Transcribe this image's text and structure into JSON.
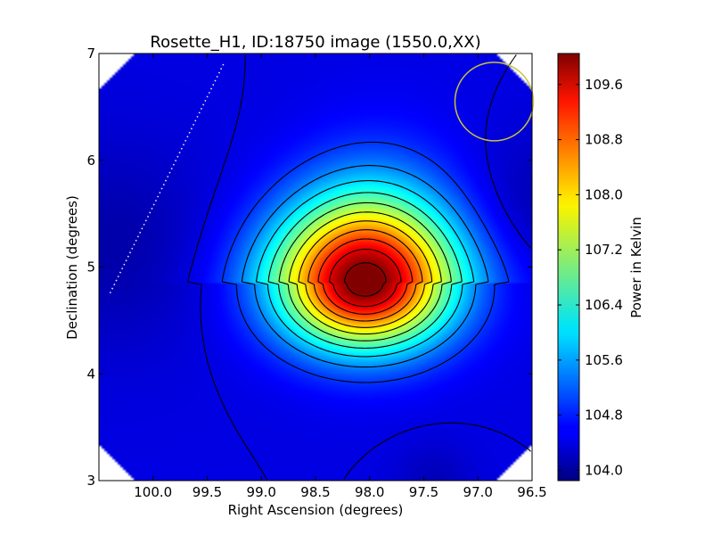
{
  "chart_data": {
    "type": "heatmap",
    "title": "Rosette_H1, ID:18750 image (1550.0,XX)",
    "xlabel": "Right Ascension (degrees)",
    "ylabel": "Declination (degrees)",
    "xlim": [
      100.5,
      96.5
    ],
    "ylim": [
      3,
      7
    ],
    "x_reversed": true,
    "x_ticks": [
      100.0,
      99.5,
      99.0,
      98.5,
      98.0,
      97.5,
      97.0,
      96.5
    ],
    "x_tick_labels": [
      "100.0",
      "99.5",
      "99.0",
      "98.5",
      "98.0",
      "97.5",
      "97.0",
      "96.5"
    ],
    "y_ticks": [
      3,
      4,
      5,
      6,
      7
    ],
    "y_tick_labels": [
      "3",
      "4",
      "5",
      "6",
      "7"
    ],
    "colormap": "jet",
    "colorbar": {
      "label": "Power in Kelvin",
      "range": [
        103.85,
        110.05
      ],
      "ticks": [
        104.0,
        104.8,
        105.6,
        106.4,
        107.2,
        108.0,
        108.8,
        109.6
      ],
      "tick_labels": [
        "104.0",
        "104.8",
        "105.6",
        "106.4",
        "107.2",
        "108.0",
        "108.8",
        "109.6"
      ]
    },
    "peak": {
      "ra": 98.05,
      "dec": 4.85,
      "value": 110.0
    },
    "background_level": 104.45,
    "contour_lines": "black",
    "beam_circle": {
      "ra": 96.85,
      "dec": 6.55,
      "color": "#c8c43a"
    },
    "dotted_line": {
      "from": [
        99.35,
        6.9
      ],
      "to": [
        100.4,
        4.75
      ],
      "color": "#e6e6e6"
    },
    "grid": false,
    "legend": "none"
  }
}
